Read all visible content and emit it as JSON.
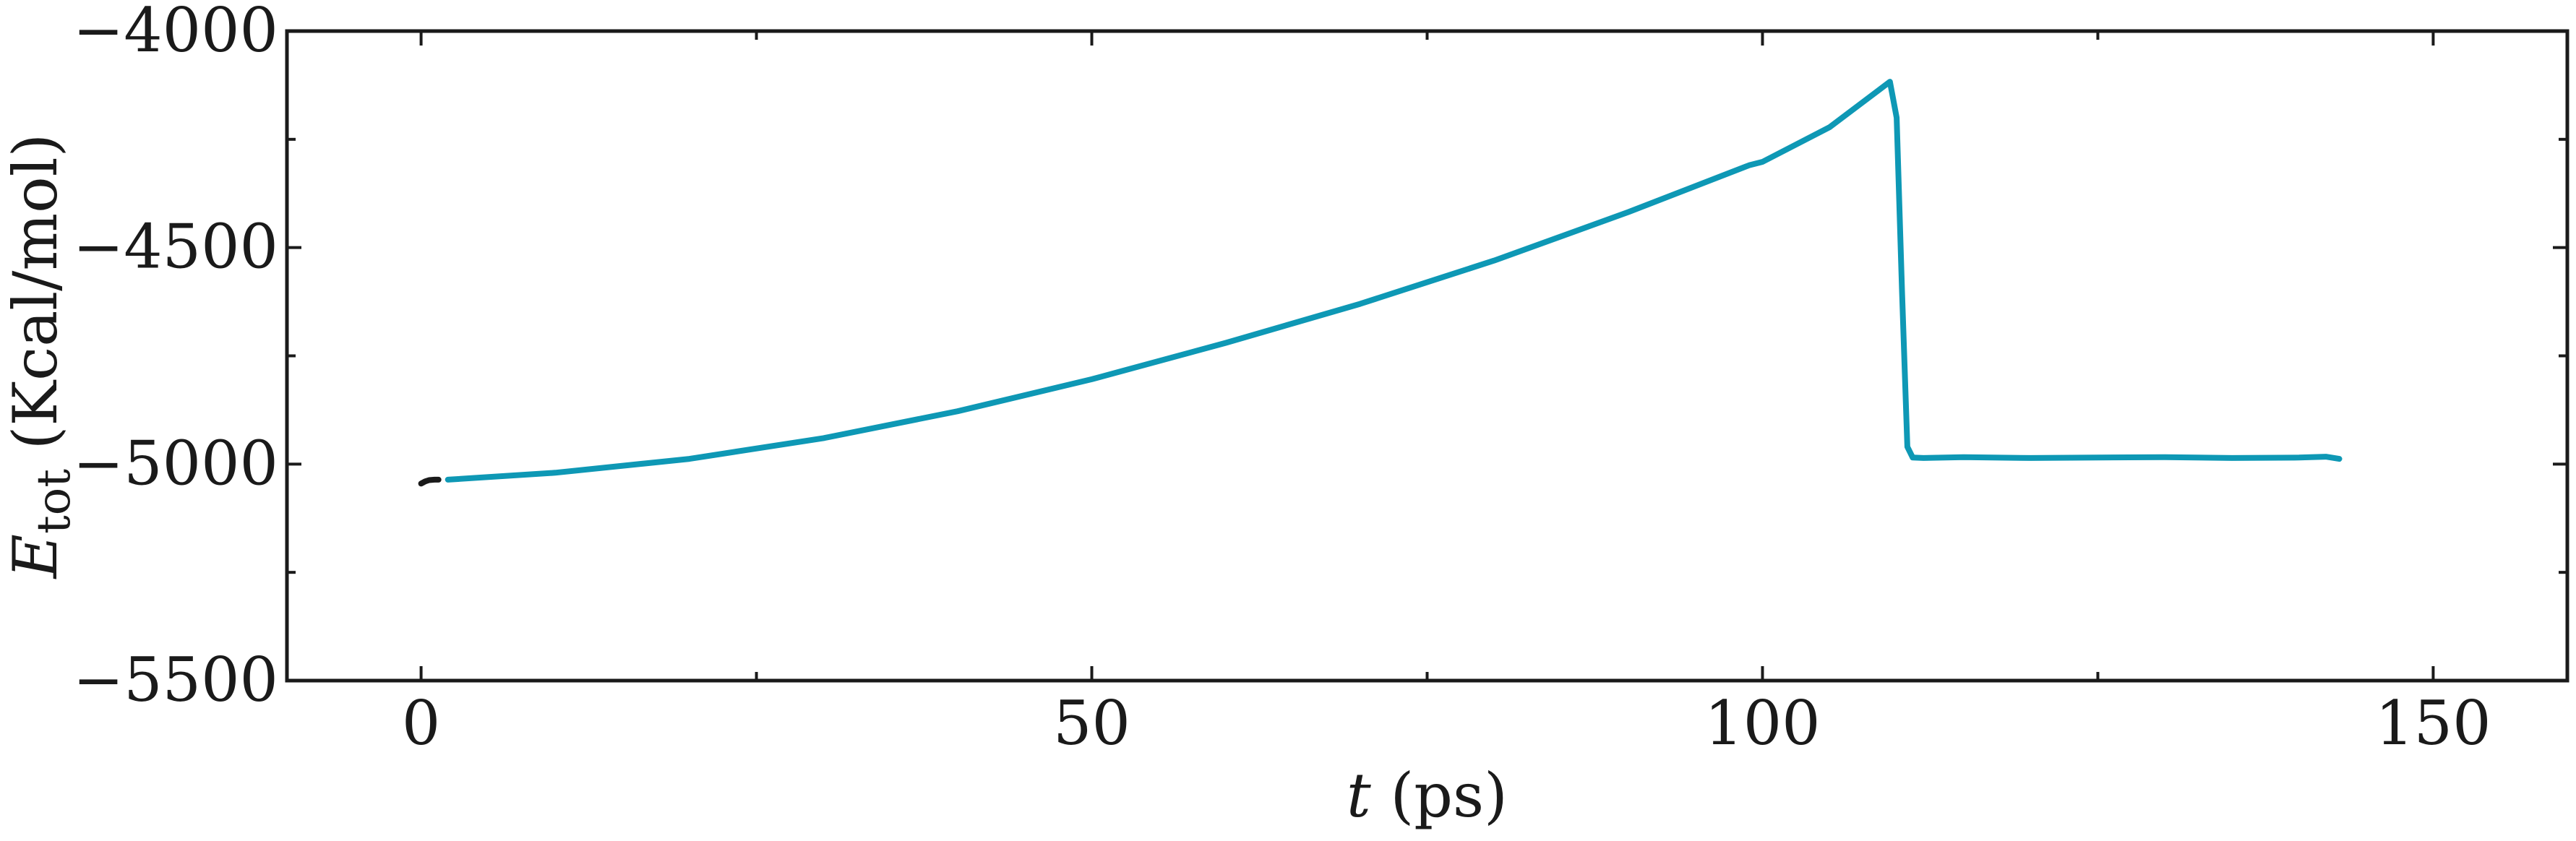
{
  "chart_data": {
    "type": "line",
    "xlabel_var": "t",
    "xlabel_unit": " (ps)",
    "ylabel_var": "E",
    "ylabel_sub": "tot",
    "ylabel_unit": " (Kcal/mol)",
    "xlim": [
      -10,
      160
    ],
    "ylim": [
      -5500,
      -4000
    ],
    "xticks": [
      0,
      50,
      100,
      150
    ],
    "xtick_labels": [
      "0",
      "50",
      "100",
      "150"
    ],
    "xticks_minor": [
      25,
      75,
      125
    ],
    "yticks": [
      -5500,
      -5000,
      -4500,
      -4000
    ],
    "ytick_labels": [
      "−5500",
      "−5000",
      "−4500",
      "−4000"
    ],
    "yticks_minor": [
      -5250,
      -4750,
      -4250
    ],
    "grid": false,
    "series": [
      {
        "color": "#1a1a1a",
        "x": [
          0,
          0.3,
          0.6,
          1.0,
          1.3
        ],
        "y": [
          -5045,
          -5040,
          -5037,
          -5036,
          -5036
        ]
      },
      {
        "color": "#0e98b5",
        "x": [
          2,
          10,
          20,
          30,
          40,
          50,
          60,
          70,
          80,
          90,
          99,
          100,
          105,
          109.5,
          110,
          110.4,
          110.8,
          111.2,
          112,
          115,
          120,
          125,
          130,
          135,
          140,
          142,
          143
        ],
        "y": [
          -5036,
          -5020,
          -4988,
          -4940,
          -4878,
          -4804,
          -4720,
          -4630,
          -4530,
          -4418,
          -4310,
          -4302,
          -4222,
          -4117,
          -4200,
          -4600,
          -4960,
          -4985,
          -4986,
          -4984,
          -4986,
          -4985,
          -4984,
          -4986,
          -4985,
          -4983,
          -4988
        ]
      }
    ]
  }
}
